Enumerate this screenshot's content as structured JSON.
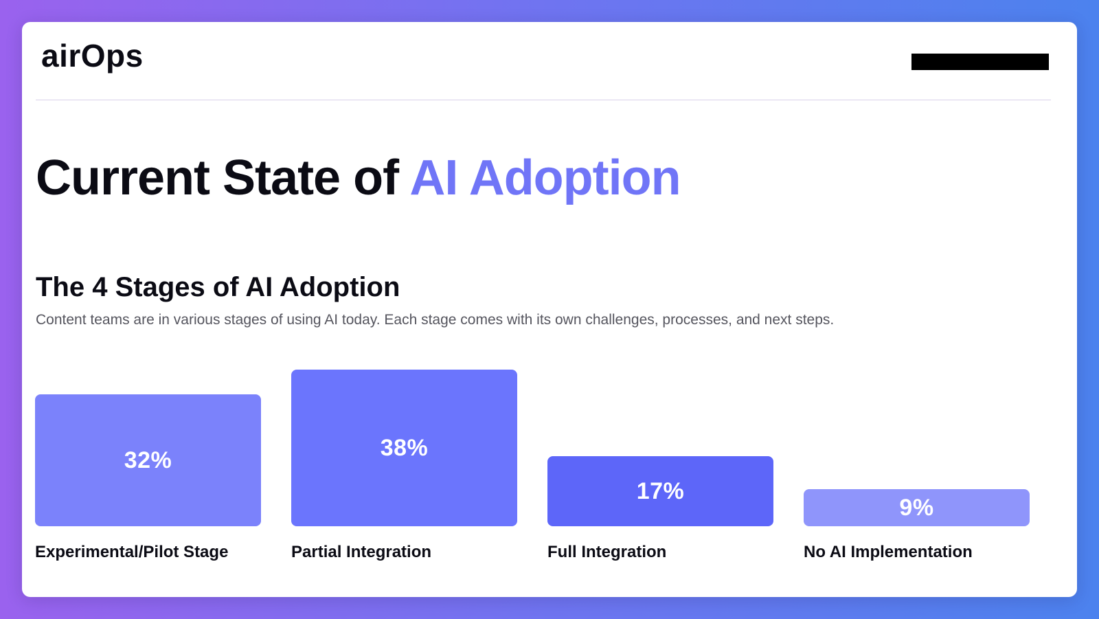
{
  "header": {
    "logo_text": "airOps"
  },
  "page": {
    "title_main": "Current State of ",
    "title_accent": "AI Adoption",
    "accent_color": "#7075f7"
  },
  "section": {
    "title": "The 4 Stages of AI Adoption",
    "subtitle": "Content teams are in various stages of using AI today. Each stage comes with its own challenges, processes, and next steps."
  },
  "chart_data": {
    "type": "bar",
    "title": "The 4 Stages of AI Adoption",
    "categories": [
      "Experimental/Pilot Stage",
      "Partial Integration",
      "Full Integration",
      "No AI Implementation"
    ],
    "values": [
      32,
      38,
      17,
      9
    ],
    "value_labels": [
      "32%",
      "38%",
      "17%",
      "9%"
    ],
    "colors": [
      "#7b82fb",
      "#6b75fd",
      "#5d66f9",
      "#8f95fb"
    ],
    "unit": "%",
    "grid": false,
    "legend": "none"
  }
}
